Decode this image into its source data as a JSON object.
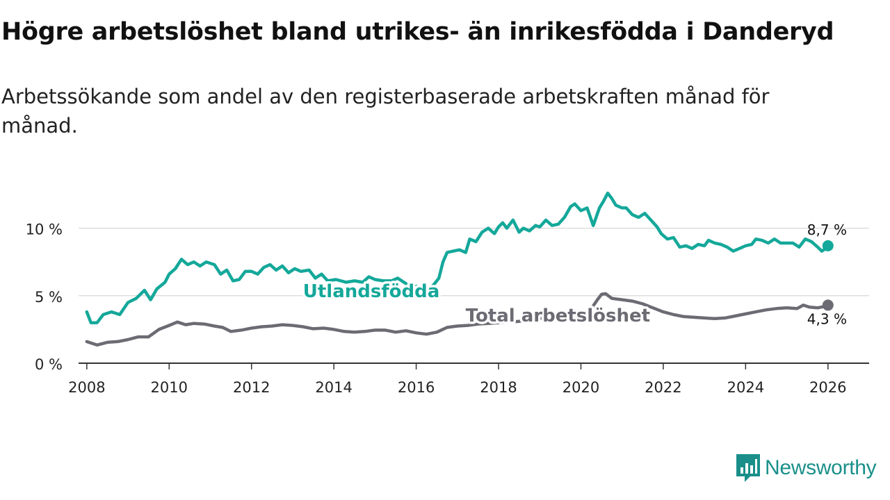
{
  "title": "Högre arbetslöshet bland utrikes- än inrikesfödda i Danderyd",
  "subtitle": "Arbetssökande som andel av den registerbaserade arbetskraften månad för månad.",
  "brand": "Newsworthy",
  "colors": {
    "foreign": "#14a89a",
    "total": "#6c6b73",
    "grid": "#dddddd",
    "axis": "#333333",
    "brand": "#1a8f8a"
  },
  "chart_data": {
    "type": "line",
    "title": "Högre arbetslöshet bland utrikes- än inrikesfödda i Danderyd",
    "xlabel": "",
    "ylabel": "",
    "xlim": [
      2007.8,
      2027.0
    ],
    "ylim": [
      0,
      12.5
    ],
    "x_ticks": [
      2008,
      2010,
      2012,
      2014,
      2016,
      2018,
      2020,
      2022,
      2024,
      2026
    ],
    "x_tick_labels": [
      "2008",
      "2010",
      "2012",
      "2014",
      "2016",
      "2018",
      "2020",
      "2022",
      "2024",
      "2026"
    ],
    "y_ticks": [
      0,
      5,
      10
    ],
    "y_tick_labels": [
      "0 %",
      "5 %",
      "10 %"
    ],
    "grid": true,
    "series": [
      {
        "name": "Utlandsfödda",
        "label": "Utlandsfödda",
        "color": "#14a89a",
        "end_label": "8,7 %",
        "points": [
          [
            2008.0,
            3.8
          ],
          [
            2008.1,
            3.0
          ],
          [
            2008.25,
            3.0
          ],
          [
            2008.4,
            3.6
          ],
          [
            2008.6,
            3.8
          ],
          [
            2008.8,
            3.6
          ],
          [
            2009.0,
            4.5
          ],
          [
            2009.2,
            4.8
          ],
          [
            2009.4,
            5.4
          ],
          [
            2009.55,
            4.7
          ],
          [
            2009.7,
            5.5
          ],
          [
            2009.9,
            6.0
          ],
          [
            2010.0,
            6.6
          ],
          [
            2010.15,
            7.0
          ],
          [
            2010.3,
            7.7
          ],
          [
            2010.45,
            7.3
          ],
          [
            2010.6,
            7.5
          ],
          [
            2010.75,
            7.2
          ],
          [
            2010.9,
            7.5
          ],
          [
            2011.1,
            7.3
          ],
          [
            2011.25,
            6.6
          ],
          [
            2011.4,
            6.9
          ],
          [
            2011.55,
            6.1
          ],
          [
            2011.7,
            6.2
          ],
          [
            2011.85,
            6.8
          ],
          [
            2012.0,
            6.8
          ],
          [
            2012.15,
            6.6
          ],
          [
            2012.3,
            7.1
          ],
          [
            2012.45,
            7.3
          ],
          [
            2012.6,
            6.9
          ],
          [
            2012.75,
            7.2
          ],
          [
            2012.9,
            6.7
          ],
          [
            2013.05,
            7.0
          ],
          [
            2013.2,
            6.8
          ],
          [
            2013.4,
            6.9
          ],
          [
            2013.55,
            6.3
          ],
          [
            2013.7,
            6.6
          ],
          [
            2013.85,
            6.1
          ],
          [
            2014.05,
            6.2
          ],
          [
            2014.3,
            6.0
          ],
          [
            2014.5,
            6.1
          ],
          [
            2014.7,
            6.0
          ],
          [
            2014.85,
            6.4
          ],
          [
            2015.0,
            6.2
          ],
          [
            2015.2,
            6.1
          ],
          [
            2015.4,
            6.1
          ],
          [
            2015.55,
            6.3
          ],
          [
            2015.7,
            6.0
          ],
          [
            2015.85,
            5.7
          ],
          [
            2016.0,
            5.7
          ],
          [
            2016.15,
            5.4
          ],
          [
            2016.3,
            5.4
          ],
          [
            2016.45,
            5.9
          ],
          [
            2016.55,
            6.3
          ],
          [
            2016.65,
            7.5
          ],
          [
            2016.75,
            8.2
          ],
          [
            2016.9,
            8.3
          ],
          [
            2017.05,
            8.4
          ],
          [
            2017.2,
            8.2
          ],
          [
            2017.3,
            9.2
          ],
          [
            2017.45,
            9.0
          ],
          [
            2017.6,
            9.7
          ],
          [
            2017.75,
            10.0
          ],
          [
            2017.9,
            9.6
          ],
          [
            2018.0,
            10.1
          ],
          [
            2018.1,
            10.4
          ],
          [
            2018.2,
            10.0
          ],
          [
            2018.35,
            10.6
          ],
          [
            2018.5,
            9.7
          ],
          [
            2018.6,
            10.0
          ],
          [
            2018.75,
            9.8
          ],
          [
            2018.9,
            10.2
          ],
          [
            2019.0,
            10.1
          ],
          [
            2019.15,
            10.6
          ],
          [
            2019.3,
            10.2
          ],
          [
            2019.45,
            10.3
          ],
          [
            2019.6,
            10.8
          ],
          [
            2019.75,
            11.6
          ],
          [
            2019.85,
            11.8
          ],
          [
            2020.0,
            11.3
          ],
          [
            2020.15,
            11.5
          ],
          [
            2020.3,
            10.2
          ],
          [
            2020.45,
            11.5
          ],
          [
            2020.55,
            12.0
          ],
          [
            2020.65,
            12.6
          ],
          [
            2020.75,
            12.2
          ],
          [
            2020.85,
            11.7
          ],
          [
            2021.0,
            11.5
          ],
          [
            2021.1,
            11.5
          ],
          [
            2021.25,
            11.0
          ],
          [
            2021.4,
            10.8
          ],
          [
            2021.55,
            11.1
          ],
          [
            2021.7,
            10.6
          ],
          [
            2021.85,
            10.1
          ],
          [
            2021.95,
            9.6
          ],
          [
            2022.1,
            9.2
          ],
          [
            2022.25,
            9.3
          ],
          [
            2022.4,
            8.6
          ],
          [
            2022.55,
            8.7
          ],
          [
            2022.7,
            8.5
          ],
          [
            2022.85,
            8.8
          ],
          [
            2023.0,
            8.7
          ],
          [
            2023.1,
            9.1
          ],
          [
            2023.25,
            8.9
          ],
          [
            2023.4,
            8.8
          ],
          [
            2023.55,
            8.6
          ],
          [
            2023.7,
            8.3
          ],
          [
            2023.85,
            8.5
          ],
          [
            2024.0,
            8.7
          ],
          [
            2024.15,
            8.8
          ],
          [
            2024.25,
            9.2
          ],
          [
            2024.4,
            9.1
          ],
          [
            2024.55,
            8.9
          ],
          [
            2024.7,
            9.2
          ],
          [
            2024.85,
            8.9
          ],
          [
            2025.0,
            8.9
          ],
          [
            2025.15,
            8.9
          ],
          [
            2025.3,
            8.6
          ],
          [
            2025.45,
            9.2
          ],
          [
            2025.6,
            9.0
          ],
          [
            2025.75,
            8.6
          ],
          [
            2025.85,
            8.3
          ],
          [
            2025.95,
            8.5
          ],
          [
            2026.0,
            8.7
          ]
        ]
      },
      {
        "name": "Total arbetslöshet",
        "label": "Total arbetslöshet",
        "color": "#6c6b73",
        "end_label": "4,3 %",
        "points": [
          [
            2008.0,
            1.6
          ],
          [
            2008.25,
            1.35
          ],
          [
            2008.5,
            1.55
          ],
          [
            2008.75,
            1.6
          ],
          [
            2009.0,
            1.75
          ],
          [
            2009.25,
            1.95
          ],
          [
            2009.5,
            1.95
          ],
          [
            2009.75,
            2.5
          ],
          [
            2010.0,
            2.8
          ],
          [
            2010.2,
            3.05
          ],
          [
            2010.4,
            2.85
          ],
          [
            2010.6,
            2.95
          ],
          [
            2010.85,
            2.9
          ],
          [
            2011.1,
            2.75
          ],
          [
            2011.3,
            2.65
          ],
          [
            2011.5,
            2.35
          ],
          [
            2011.75,
            2.45
          ],
          [
            2012.0,
            2.6
          ],
          [
            2012.25,
            2.7
          ],
          [
            2012.5,
            2.75
          ],
          [
            2012.75,
            2.85
          ],
          [
            2013.0,
            2.8
          ],
          [
            2013.25,
            2.7
          ],
          [
            2013.5,
            2.55
          ],
          [
            2013.75,
            2.6
          ],
          [
            2014.0,
            2.5
          ],
          [
            2014.25,
            2.35
          ],
          [
            2014.5,
            2.3
          ],
          [
            2014.75,
            2.35
          ],
          [
            2015.0,
            2.45
          ],
          [
            2015.25,
            2.45
          ],
          [
            2015.5,
            2.3
          ],
          [
            2015.75,
            2.4
          ],
          [
            2016.0,
            2.25
          ],
          [
            2016.25,
            2.15
          ],
          [
            2016.5,
            2.3
          ],
          [
            2016.75,
            2.65
          ],
          [
            2017.0,
            2.75
          ],
          [
            2017.25,
            2.8
          ],
          [
            2017.5,
            2.9
          ],
          [
            2017.75,
            2.95
          ],
          [
            2018.0,
            3.0
          ],
          [
            2018.25,
            3.05
          ],
          [
            2018.5,
            3.1
          ],
          [
            2018.75,
            3.2
          ],
          [
            2019.0,
            3.3
          ],
          [
            2019.25,
            3.4
          ],
          [
            2019.5,
            3.5
          ],
          [
            2019.75,
            3.5
          ],
          [
            2020.0,
            3.6
          ],
          [
            2020.2,
            3.8
          ],
          [
            2020.4,
            4.7
          ],
          [
            2020.5,
            5.1
          ],
          [
            2020.6,
            5.15
          ],
          [
            2020.75,
            4.8
          ],
          [
            2021.0,
            4.7
          ],
          [
            2021.25,
            4.6
          ],
          [
            2021.5,
            4.4
          ],
          [
            2021.75,
            4.1
          ],
          [
            2022.0,
            3.8
          ],
          [
            2022.25,
            3.6
          ],
          [
            2022.5,
            3.45
          ],
          [
            2022.75,
            3.4
          ],
          [
            2023.0,
            3.35
          ],
          [
            2023.25,
            3.3
          ],
          [
            2023.5,
            3.35
          ],
          [
            2023.75,
            3.5
          ],
          [
            2024.0,
            3.65
          ],
          [
            2024.25,
            3.8
          ],
          [
            2024.5,
            3.95
          ],
          [
            2024.75,
            4.05
          ],
          [
            2025.0,
            4.1
          ],
          [
            2025.25,
            4.05
          ],
          [
            2025.4,
            4.3
          ],
          [
            2025.55,
            4.15
          ],
          [
            2025.75,
            4.1
          ],
          [
            2025.9,
            4.2
          ],
          [
            2026.0,
            4.3
          ]
        ]
      }
    ]
  }
}
